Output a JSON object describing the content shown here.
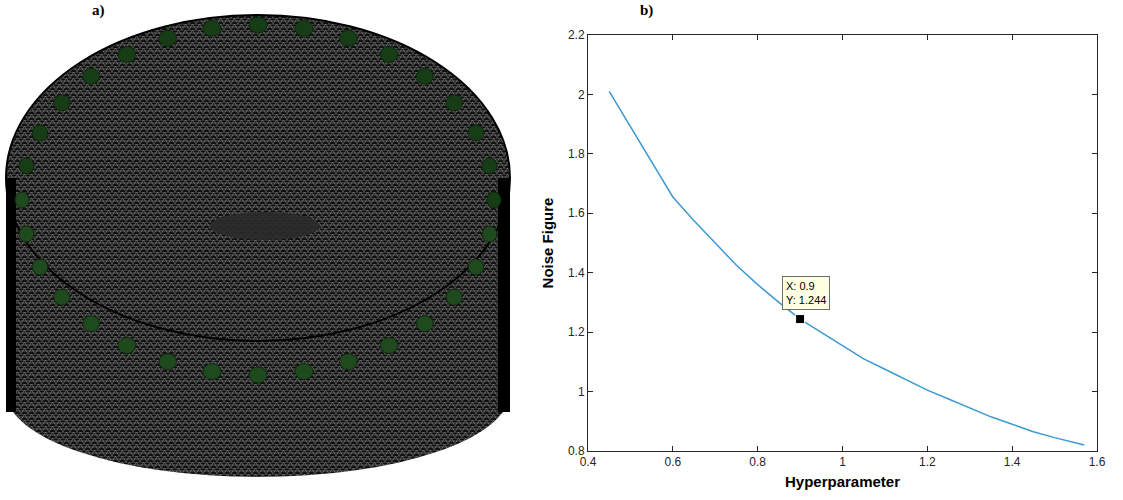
{
  "panel_labels": [
    "a)",
    "b)"
  ],
  "chart_data": {
    "type": "line",
    "x": [
      0.45,
      0.5,
      0.55,
      0.6,
      0.65,
      0.7,
      0.75,
      0.8,
      0.85,
      0.9,
      0.95,
      1.0,
      1.05,
      1.1,
      1.15,
      1.2,
      1.25,
      1.3,
      1.35,
      1.4,
      1.45,
      1.5,
      1.57
    ],
    "values": [
      2.01,
      1.89,
      1.77,
      1.655,
      1.575,
      1.5,
      1.425,
      1.36,
      1.3,
      1.244,
      1.2,
      1.155,
      1.11,
      1.075,
      1.04,
      1.005,
      0.975,
      0.945,
      0.915,
      0.89,
      0.865,
      0.845,
      0.82
    ],
    "color": "#3d9ad1",
    "xlabel": "Hyperparameter",
    "ylabel": "Noise Figure",
    "xlim": [
      0.4,
      1.6
    ],
    "xticks": [
      0.4,
      0.6,
      0.8,
      1,
      1.2,
      1.4,
      1.6
    ],
    "ylim": [
      0.8,
      2.2
    ],
    "yticks": [
      0.8,
      1,
      1.2,
      1.4,
      1.6,
      1.8,
      2,
      2.2
    ],
    "grid": false,
    "annotations": [
      {
        "x": 0.9,
        "y": 1.244,
        "lines": [
          "X: 0.9",
          "Y: 1.244"
        ],
        "marker": "square",
        "color": "#000000"
      }
    ]
  }
}
